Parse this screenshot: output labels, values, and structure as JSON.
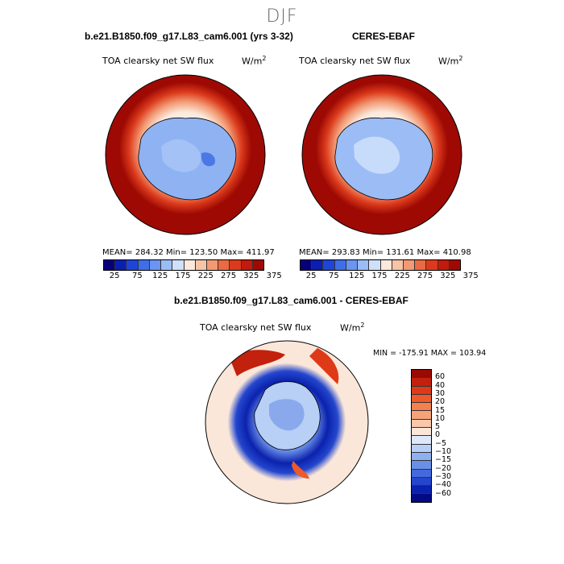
{
  "season": "DJF",
  "panels": {
    "model": {
      "title": "b.e21.B1850.f09_g17.L83_cam6.001 (yrs 3-32)",
      "variable": "TOA clearsky net SW flux",
      "units": "W/m",
      "units_exp": "2",
      "stats": "MEAN= 284.32  Min= 123.50  Max= 411.97"
    },
    "obs": {
      "title": "CERES-EBAF",
      "variable": "TOA clearsky net SW flux",
      "units": "W/m",
      "units_exp": "2",
      "stats": "MEAN= 293.83  Min= 131.61  Max= 410.98"
    },
    "diff": {
      "title": "b.e21.B1850.f09_g17.L83_cam6.001 - CERES-EBAF",
      "variable": "TOA clearsky net SW flux",
      "units": "W/m",
      "units_exp": "2",
      "stats": "MIN = -175.91  MAX = 103.94"
    }
  },
  "colorbar_main": {
    "colors": [
      "#08007a",
      "#0a1fb0",
      "#1f45d6",
      "#3f6fe8",
      "#6a95f0",
      "#9bbcf5",
      "#cfe0fa",
      "#fbe9dc",
      "#f7c4a6",
      "#f29a74",
      "#ea6a43",
      "#db3a1c",
      "#c21a0c",
      "#9e0a03"
    ],
    "labels": [
      "25",
      "75",
      "125",
      "175",
      "225",
      "275",
      "325",
      "375"
    ]
  },
  "colorbar_diff": {
    "colors": [
      "#980a04",
      "#c2210d",
      "#df3a18",
      "#ee5a2b",
      "#f57f4d",
      "#f7a37a",
      "#f9c7aa",
      "#fbe7d9",
      "#dde8fb",
      "#b8cff6",
      "#8eb0f0",
      "#6a8fe8",
      "#4469df",
      "#2446cd",
      "#0b22ad",
      "#040a84"
    ],
    "labels": [
      "60",
      "40",
      "30",
      "20",
      "15",
      "10",
      "5",
      "0",
      "−5",
      "−10",
      "−15",
      "−20",
      "−30",
      "−40",
      "−60"
    ]
  }
}
